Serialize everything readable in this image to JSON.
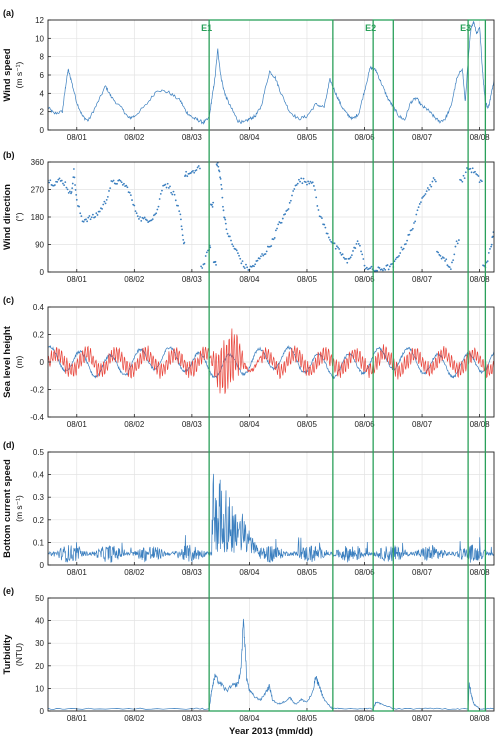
{
  "chart_data": {
    "type": "line",
    "xlabel": "Year 2013 (mm/dd)",
    "x_tick_labels": [
      "08/01",
      "08/02",
      "08/03",
      "08/04",
      "08/05",
      "08/06",
      "08/07",
      "08/08"
    ],
    "x_range_days": [
      0.5,
      8.25
    ],
    "colors": {
      "series_blue": "#3b7fbf",
      "series_red": "#e8443a",
      "event_green": "#2aa05a",
      "grid": "#e3e3e3"
    },
    "events": [
      {
        "label": "E1",
        "start": 3.3,
        "end": 5.45
      },
      {
        "label": "E2",
        "start": 6.15,
        "end": 6.5
      },
      {
        "label": "E3",
        "start": 7.8,
        "end": 8.1
      }
    ],
    "panels": [
      {
        "tag": "(a)",
        "ylabel": "Wind speed",
        "unit": "(m s⁻¹)",
        "ylim": [
          0,
          12
        ],
        "yticks": [
          0,
          2,
          4,
          6,
          8,
          10,
          12
        ],
        "ytick_labels": [
          "0",
          "2",
          "4",
          "6",
          "8",
          "10",
          "12"
        ],
        "series": [
          {
            "color": "blue",
            "style": "line",
            "x": [
              0.5,
              0.6,
              0.75,
              0.8,
              0.85,
              0.9,
              1.0,
              1.1,
              1.2,
              1.35,
              1.5,
              1.6,
              1.8,
              1.9,
              2.0,
              2.2,
              2.4,
              2.6,
              2.8,
              2.9,
              3.0,
              3.1,
              3.2,
              3.3,
              3.35,
              3.4,
              3.45,
              3.5,
              3.55,
              3.6,
              3.7,
              3.8,
              3.9,
              4.0,
              4.1,
              4.2,
              4.35,
              4.45,
              4.55,
              4.7,
              4.85,
              5.0,
              5.15,
              5.3,
              5.4,
              5.5,
              5.6,
              5.7,
              5.8,
              5.9,
              6.0,
              6.1,
              6.2,
              6.3,
              6.4,
              6.5,
              6.6,
              6.7,
              6.8,
              6.9,
              7.0,
              7.1,
              7.2,
              7.3,
              7.4,
              7.5,
              7.6,
              7.7,
              7.75,
              7.8,
              7.85,
              7.9,
              7.95,
              8.0,
              8.05,
              8.1,
              8.15,
              8.2,
              8.25
            ],
            "y": [
              2.5,
              1.8,
              2.0,
              4.5,
              6.6,
              5.5,
              3.0,
              1.5,
              1.0,
              2.8,
              4.8,
              3.6,
              2.2,
              1.3,
              1.5,
              2.7,
              4.4,
              4.1,
              3.2,
              2.0,
              1.4,
              1.1,
              0.8,
              1.3,
              3.5,
              5.6,
              8.8,
              6.0,
              4.5,
              3.5,
              2.2,
              1.0,
              0.8,
              1.2,
              1.5,
              2.5,
              6.4,
              5.7,
              4.0,
              2.0,
              1.2,
              1.5,
              2.8,
              2.5,
              5.5,
              4.0,
              2.6,
              1.7,
              1.2,
              1.8,
              4.3,
              6.8,
              6.5,
              5.0,
              3.5,
              2.5,
              1.5,
              1.1,
              3.0,
              3.5,
              2.6,
              2.2,
              1.5,
              0.9,
              1.2,
              2.5,
              5.5,
              6.8,
              3.0,
              7.5,
              11.2,
              11.8,
              10.5,
              11.3,
              6.5,
              3.0,
              2.4,
              3.8,
              5.5
            ]
          }
        ]
      },
      {
        "tag": "(b)",
        "ylabel": "Wind direction",
        "unit": "(°)",
        "ylim": [
          0,
          360
        ],
        "yticks": [
          0,
          90,
          180,
          270,
          360
        ],
        "ytick_labels": [
          "0",
          "90",
          "180",
          "270",
          "360"
        ],
        "series": [
          {
            "color": "blue",
            "style": "points",
            "x": [
              0.5,
              0.6,
              0.7,
              0.8,
              0.9,
              0.95,
              1.0,
              1.1,
              1.2,
              1.3,
              1.4,
              1.5,
              1.6,
              1.7,
              1.8,
              1.9,
              2.0,
              2.1,
              2.2,
              2.3,
              2.4,
              2.5,
              2.6,
              2.7,
              2.8,
              2.85,
              2.9,
              3.0,
              3.1,
              3.2,
              3.3,
              3.35,
              3.4,
              3.45,
              3.5,
              3.55,
              3.6,
              3.7,
              3.8,
              3.9,
              4.0,
              4.1,
              4.2,
              4.3,
              4.4,
              4.5,
              4.6,
              4.7,
              4.8,
              4.9,
              5.0,
              5.1,
              5.2,
              5.3,
              5.4,
              5.5,
              5.6,
              5.7,
              5.8,
              5.9,
              6.0,
              6.1,
              6.2,
              6.3,
              6.4,
              6.5,
              6.6,
              6.7,
              6.8,
              6.9,
              7.0,
              7.1,
              7.2,
              7.3,
              7.4,
              7.5,
              7.6,
              7.7,
              7.8,
              7.9,
              8.0,
              8.1,
              8.2,
              8.25
            ],
            "y": [
              300,
              290,
              300,
              290,
              250,
              330,
              230,
              170,
              175,
              180,
              200,
              230,
              290,
              295,
              290,
              270,
              210,
              175,
              170,
              175,
              200,
              290,
              280,
              250,
              180,
              100,
              320,
              320,
              340,
              20,
              80,
              220,
              30,
              350,
              310,
              200,
              140,
              90,
              60,
              20,
              10,
              25,
              50,
              70,
              100,
              150,
              180,
              220,
              290,
              300,
              295,
              300,
              200,
              150,
              110,
              80,
              60,
              30,
              70,
              100,
              20,
              10,
              5,
              10,
              15,
              20,
              60,
              90,
              130,
              180,
              250,
              270,
              300,
              60,
              40,
              10,
              100,
              300,
              340,
              330,
              300,
              20,
              80,
              150
            ]
          }
        ]
      },
      {
        "tag": "(c)",
        "ylabel": "Sea level height",
        "unit": "(m)",
        "ylim": [
          -0.4,
          0.4
        ],
        "yticks": [
          -0.4,
          -0.2,
          0,
          0.2,
          0.4
        ],
        "ytick_labels": [
          "-0.4",
          "-0.2",
          "0",
          "0.2",
          "0.4"
        ],
        "series": [
          {
            "color": "blue",
            "style": "line",
            "amplitude": 0.08
          },
          {
            "color": "red",
            "style": "line",
            "amplitude": 0.06,
            "burst": {
              "start": 3.3,
              "end": 4.2,
              "amplitude": 0.26
            }
          }
        ]
      },
      {
        "tag": "(d)",
        "ylabel": "Bottom current speed",
        "unit": "(m s⁻¹)",
        "ylim": [
          0,
          0.5
        ],
        "yticks": [
          0,
          0.1,
          0.2,
          0.3,
          0.4,
          0.5
        ],
        "ytick_labels": [
          "0",
          "0.1",
          "0.2",
          "0.3",
          "0.4",
          "0.5"
        ],
        "series": [
          {
            "color": "blue",
            "style": "line",
            "baseline": 0.05,
            "spread": 0.08,
            "burst": {
              "start": 3.35,
              "end": 4.15,
              "peak": 0.39
            }
          }
        ]
      },
      {
        "tag": "(e)",
        "ylabel": "Turbidity",
        "unit": "(NTU)",
        "ylim": [
          0,
          50
        ],
        "yticks": [
          0,
          10,
          20,
          30,
          40,
          50
        ],
        "ytick_labels": [
          "0",
          "10",
          "20",
          "30",
          "40",
          "50"
        ],
        "series": [
          {
            "color": "blue",
            "style": "line",
            "x": [
              0.5,
              1.0,
              2.0,
              3.0,
              3.3,
              3.35,
              3.4,
              3.5,
              3.6,
              3.7,
              3.8,
              3.85,
              3.9,
              3.95,
              4.0,
              4.1,
              4.2,
              4.3,
              4.35,
              4.4,
              4.5,
              4.6,
              4.7,
              4.8,
              4.9,
              5.0,
              5.1,
              5.15,
              5.2,
              5.3,
              5.4,
              5.45,
              5.6,
              6.0,
              6.15,
              6.2,
              6.3,
              6.5,
              7.0,
              7.5,
              7.8,
              7.82,
              7.85,
              7.9,
              8.0,
              8.1,
              8.25
            ],
            "y": [
              1,
              1,
              1,
              1,
              1,
              10,
              15,
              12,
              9,
              11,
              12,
              18,
              41,
              15,
              9,
              6,
              5,
              9,
              11,
              5,
              3,
              4,
              6,
              3,
              5,
              4,
              8,
              15,
              12,
              5,
              2,
              1,
              1,
              1,
              1,
              4,
              3,
              1,
              1,
              1,
              1,
              12,
              8,
              3,
              1,
              1,
              1
            ]
          }
        ]
      }
    ]
  }
}
